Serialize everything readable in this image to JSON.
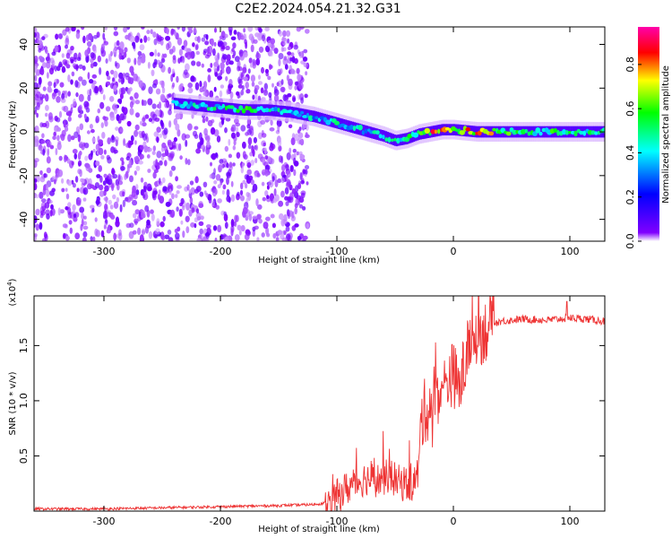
{
  "figure": {
    "title": "C2E2.2024.054.21.32.G31"
  },
  "chart_data": [
    {
      "type": "heatmap",
      "xlabel": "Height of straight line (km)",
      "ylabel": "Frequency (Hz)",
      "xlim": [
        -360,
        130
      ],
      "ylim": [
        -50,
        48
      ],
      "xticks": [
        -300,
        -200,
        -100,
        0,
        100
      ],
      "yticks": [
        -40,
        -20,
        0,
        20,
        40
      ],
      "colorbar": {
        "label": "Normalized spectral amplitude",
        "range": [
          0,
          0.97
        ],
        "ticks": [
          "0.0",
          "0.2",
          "0.4",
          "0.6",
          "0.8"
        ],
        "colormap": [
          "#ffffff",
          "#8000ff",
          "#0000ff",
          "#00ffff",
          "#00ff00",
          "#ffff00",
          "#ff0000",
          "#ff00aa"
        ]
      },
      "signal_track": {
        "x": [
          -240,
          -220,
          -200,
          -180,
          -160,
          -140,
          -120,
          -100,
          -80,
          -60,
          -50,
          -40,
          -30,
          -20,
          -10,
          0,
          20,
          50,
          80,
          100,
          130
        ],
        "frequency": [
          13,
          12,
          11,
          10,
          10,
          9,
          7,
          4,
          1,
          -2,
          -4,
          -3,
          -1,
          0,
          1,
          1,
          0,
          0,
          0,
          0,
          0
        ],
        "amplitude": [
          0.45,
          0.5,
          0.55,
          0.6,
          0.5,
          0.45,
          0.45,
          0.5,
          0.5,
          0.45,
          0.5,
          0.55,
          0.7,
          0.85,
          0.9,
          0.85,
          0.8,
          0.65,
          0.6,
          0.6,
          0.55
        ]
      },
      "noise_region_x": [
        -360,
        -125
      ],
      "grid": false
    },
    {
      "type": "line",
      "xlabel": "Height of straight line (km)",
      "ylabel": "SNR (10 * v/v)",
      "y_multiplier": "(x10",
      "y_multiplier_exp": "4",
      "y_multiplier_close": ")",
      "xlim": [
        -360,
        130
      ],
      "ylim": [
        0,
        1.95
      ],
      "xticks": [
        -300,
        -200,
        -100,
        0,
        100
      ],
      "yticks": [
        0.5,
        1.0,
        1.5
      ],
      "ytick_labels": [
        "0.5",
        "1.0",
        "1.5"
      ],
      "color": "#ee3333",
      "series": [
        {
          "x": [
            -360,
            -300,
            -250,
            -200,
            -150,
            -120,
            -105,
            -95,
            -85,
            -75,
            -65,
            -55,
            -45,
            -35,
            -30,
            -28,
            -25,
            -20,
            -15,
            -10,
            -5,
            0,
            5,
            10,
            15,
            20,
            25,
            30,
            35,
            40,
            50,
            60,
            80,
            100,
            115,
            130
          ],
          "values": [
            0.02,
            0.02,
            0.03,
            0.04,
            0.05,
            0.06,
            0.08,
            0.18,
            0.25,
            0.3,
            0.28,
            0.32,
            0.25,
            0.24,
            0.35,
            0.8,
            0.9,
            0.95,
            1.1,
            1.05,
            1.2,
            1.25,
            1.1,
            1.35,
            1.55,
            1.6,
            1.62,
            1.66,
            1.7,
            1.72,
            1.73,
            1.74,
            1.73,
            1.75,
            1.74,
            1.72
          ]
        }
      ],
      "grid": false
    }
  ]
}
